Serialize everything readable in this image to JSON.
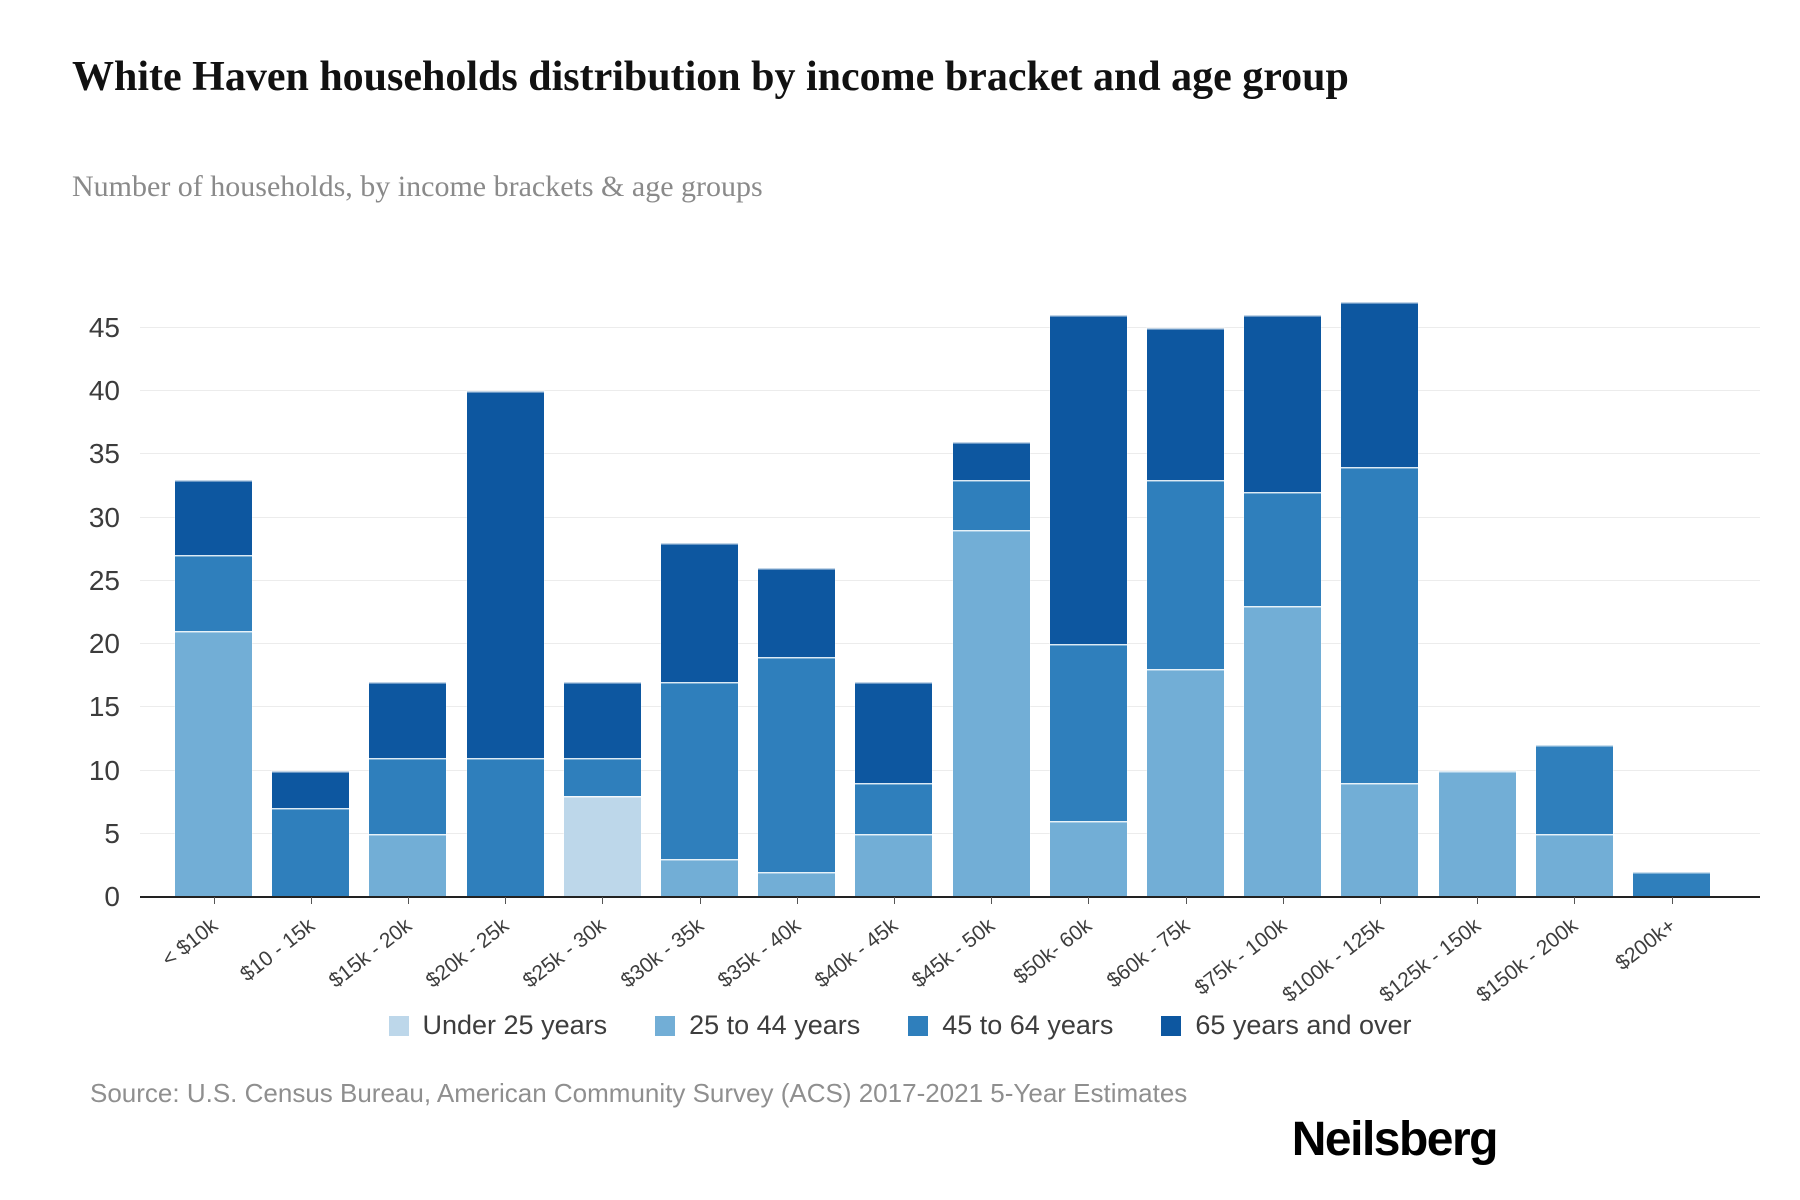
{
  "header": {
    "title": "White Haven households distribution by income bracket and age group",
    "subtitle": "Number of households, by income brackets & age groups"
  },
  "footer": {
    "source": "Source: U.S. Census Bureau, American Community Survey (ACS) 2017-2021 5-Year Estimates",
    "logo": "Neilsberg"
  },
  "colors": {
    "under_25": "#bdd7ea",
    "age_25_44": "#72aed6",
    "age_45_64": "#2f7fbc",
    "age_65_over": "#0d57a0",
    "gridline": "#ececec",
    "axis_line": "#222222"
  },
  "chart_data": {
    "type": "bar",
    "stacked": true,
    "title": "White Haven households distribution by income bracket and age group",
    "xlabel": "",
    "ylabel": "",
    "ylim": [
      0,
      47
    ],
    "yticks": [
      0,
      5,
      10,
      15,
      20,
      25,
      30,
      35,
      40,
      45
    ],
    "grid": true,
    "legend_position": "bottom",
    "categories": [
      "< $10k",
      "$10 - 15k",
      "$15k - 20k",
      "$20k - 25k",
      "$25k - 30k",
      "$30k - 35k",
      "$35k - 40k",
      "$40k - 45k",
      "$45k - 50k",
      "$50k- 60k",
      "$60k - 75k",
      "$75k - 100k",
      "$100k - 125k",
      "$125k - 150k",
      "$150k - 200k",
      "$200k+"
    ],
    "series": [
      {
        "name": "Under 25 years",
        "color": "#bdd7ea",
        "values": [
          0,
          0,
          0,
          0,
          8,
          0,
          0,
          0,
          0,
          0,
          0,
          0,
          0,
          0,
          0,
          0
        ]
      },
      {
        "name": "25 to 44 years",
        "color": "#72aed6",
        "values": [
          21,
          0,
          5,
          0,
          0,
          3,
          2,
          5,
          29,
          6,
          18,
          23,
          9,
          10,
          5,
          0
        ]
      },
      {
        "name": "45 to 64 years",
        "color": "#2f7fbc",
        "values": [
          6,
          7,
          6,
          11,
          3,
          14,
          17,
          4,
          4,
          14,
          15,
          9,
          25,
          0,
          7,
          2
        ]
      },
      {
        "name": "65 years and over",
        "color": "#0d57a0",
        "values": [
          6,
          3,
          6,
          29,
          6,
          11,
          7,
          8,
          3,
          26,
          12,
          14,
          13,
          0,
          0,
          0
        ]
      }
    ],
    "totals": [
      33,
      10,
      17,
      40,
      17,
      28,
      26,
      17,
      36,
      46,
      45,
      46,
      47,
      10,
      12,
      2
    ]
  }
}
